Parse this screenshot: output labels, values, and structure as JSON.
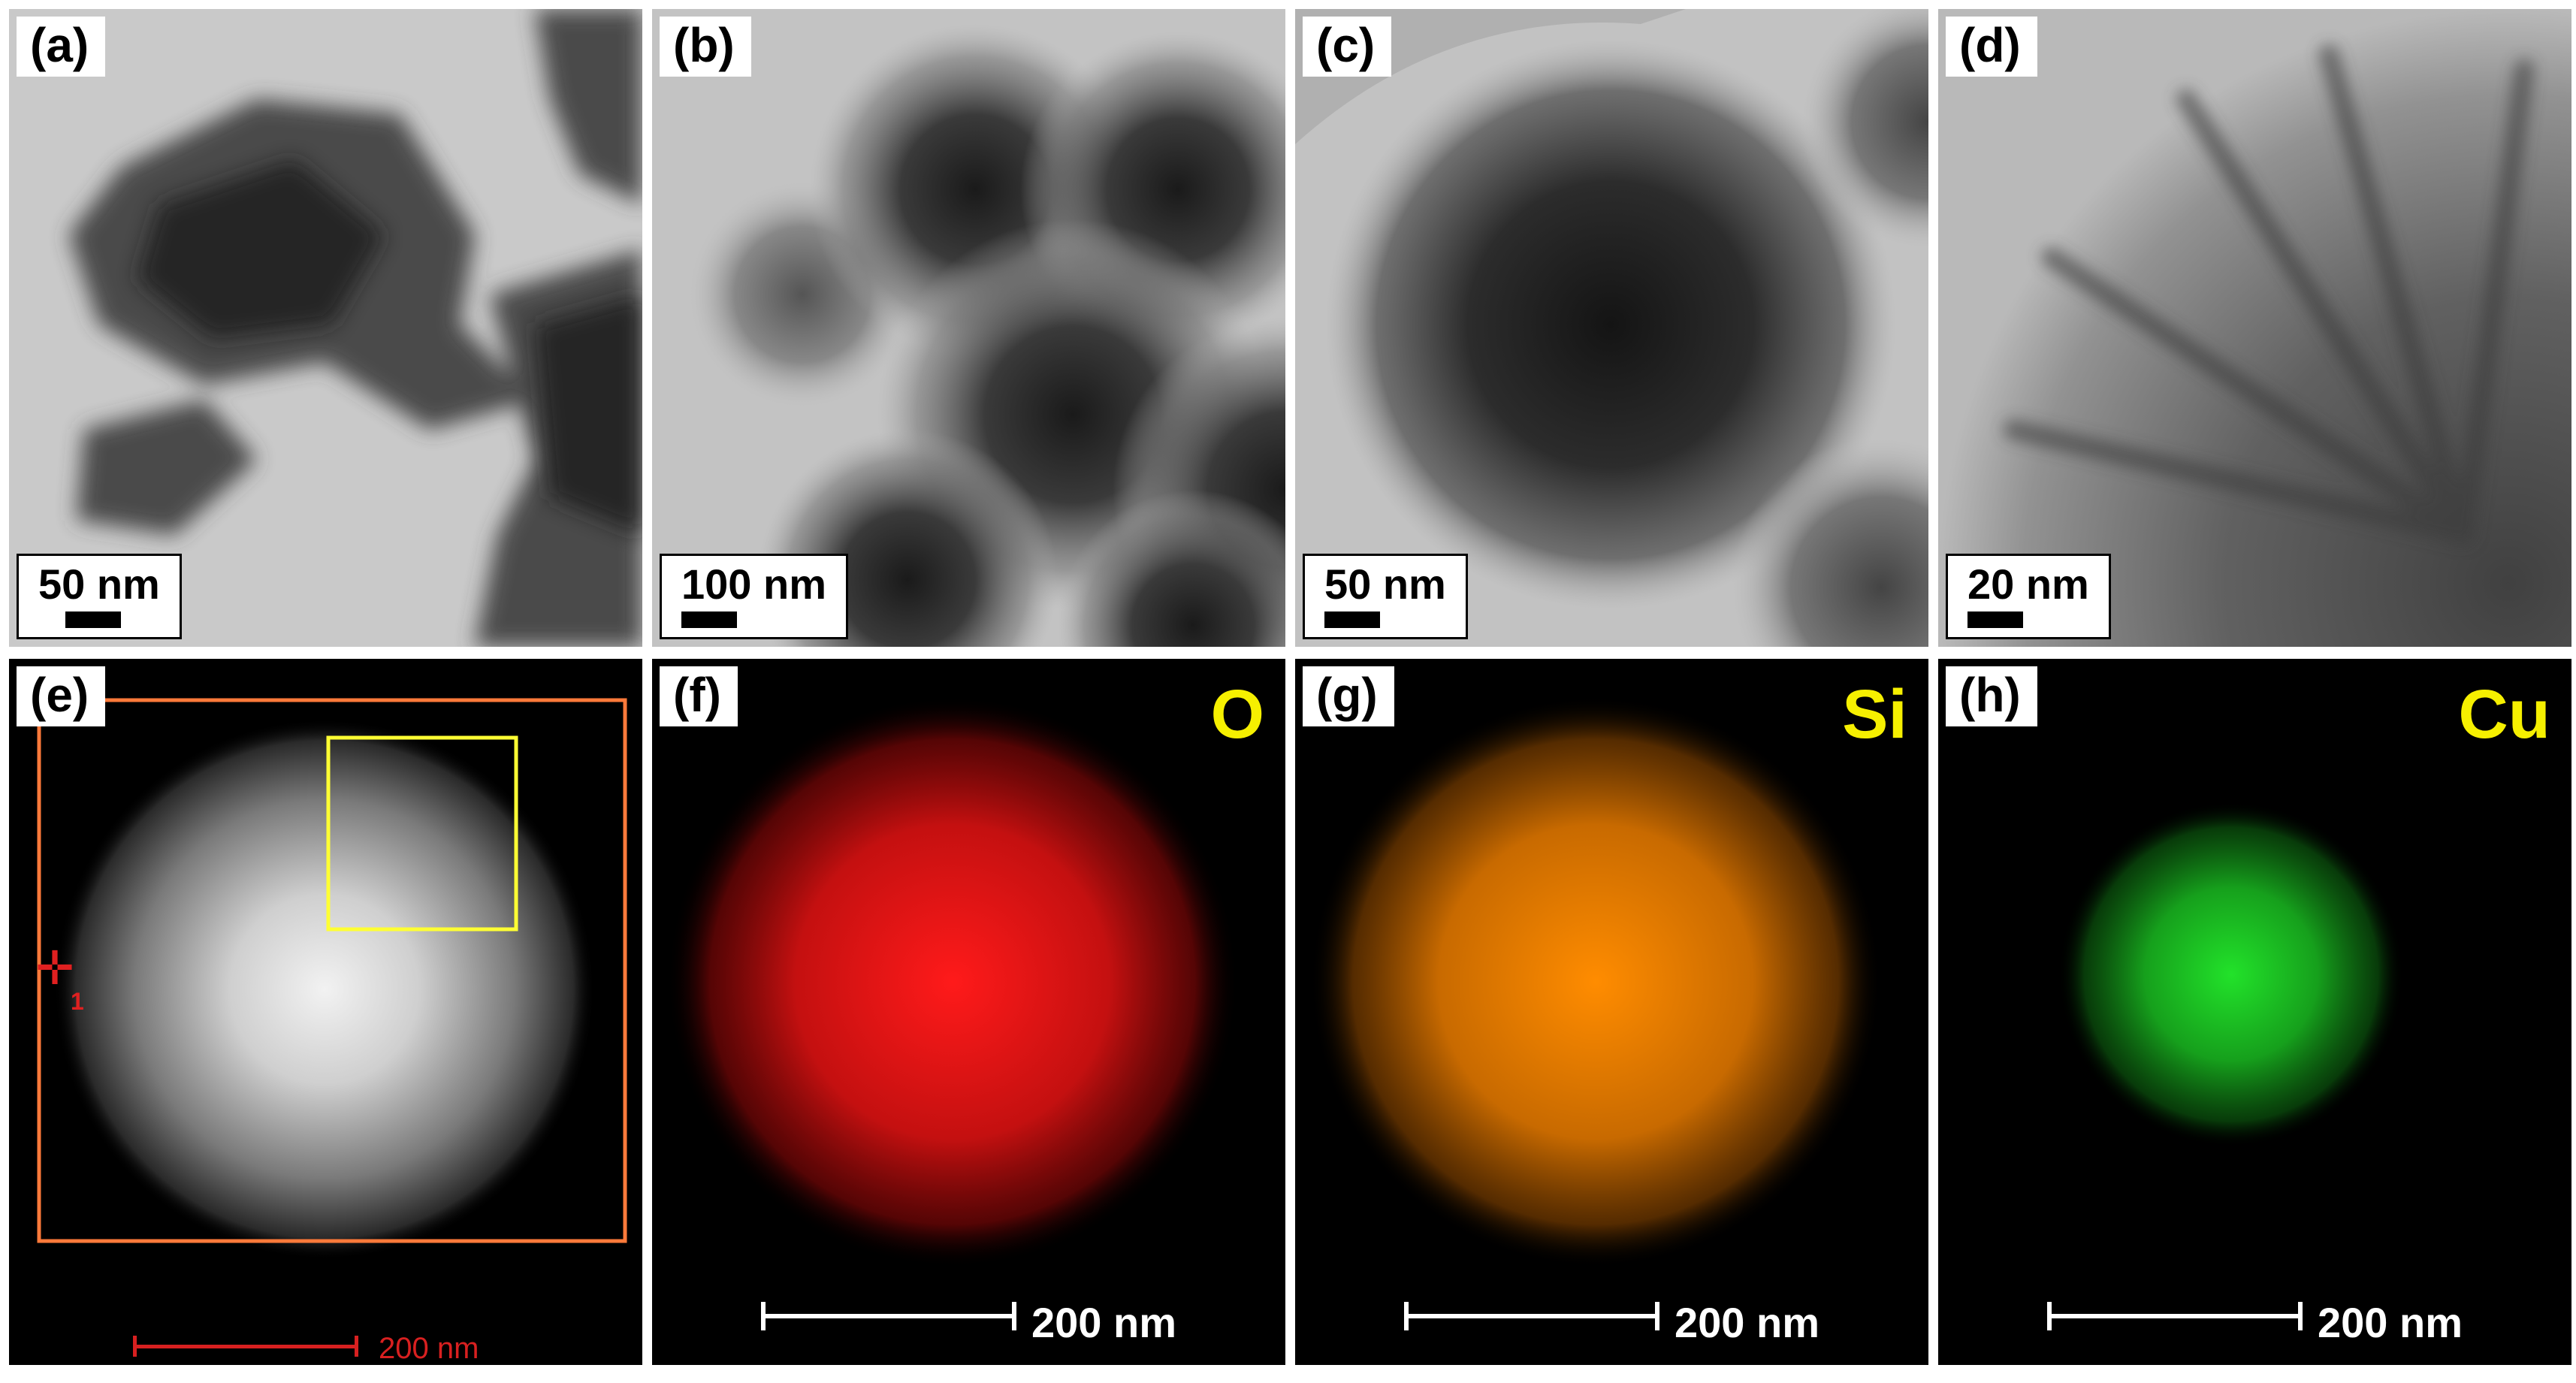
{
  "panels": [
    {
      "label": "(a)",
      "scale": "50 nm"
    },
    {
      "label": "(b)",
      "scale": "100 nm"
    },
    {
      "label": "(c)",
      "scale": "50 nm"
    },
    {
      "label": "(d)",
      "scale": "20 nm"
    },
    {
      "label": "(e)",
      "scale": "200 nm",
      "marker_num": "1"
    },
    {
      "label": "(f)",
      "element": "O",
      "scale": "200 nm"
    },
    {
      "label": "(g)",
      "element": "Si",
      "scale": "200 nm"
    },
    {
      "label": "(h)",
      "element": "Cu",
      "scale": "200 nm"
    }
  ],
  "colors": {
    "tem_background": "#c8c8c8",
    "map_background": "#000000",
    "element_label": "#f6f000",
    "oxygen_map": "#ff1a1a",
    "silicon_map": "#ff8c00",
    "copper_map": "#22e22a",
    "e_frame": "#ff7a3a",
    "e_selection": "#ffff33",
    "e_scale": "#d82020"
  }
}
